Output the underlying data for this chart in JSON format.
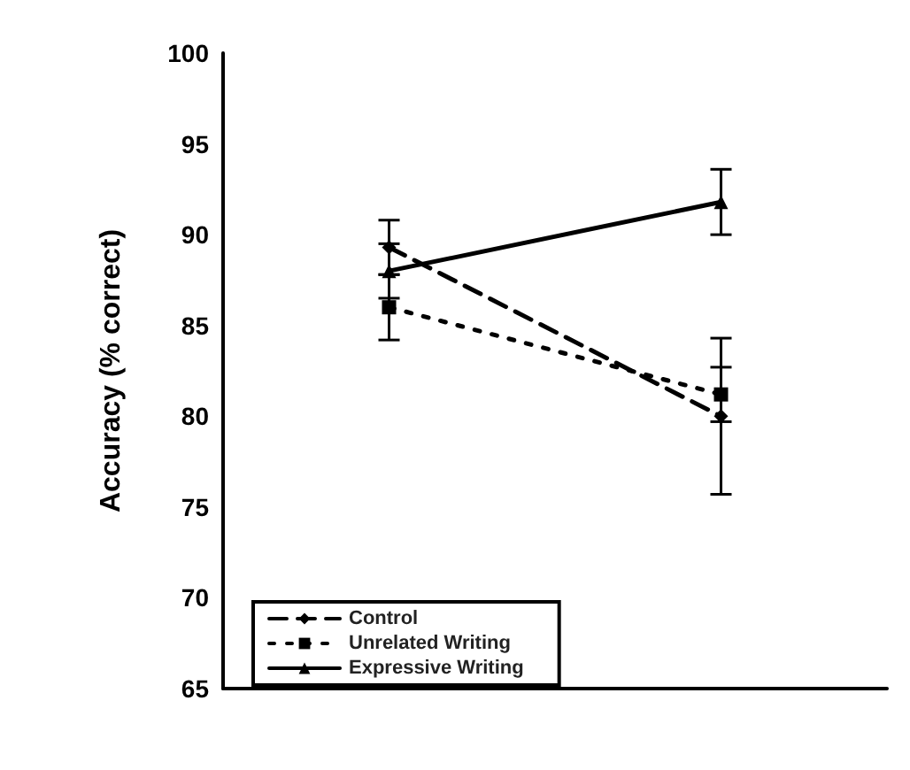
{
  "chart_data": {
    "type": "line",
    "ylabel": "Accuracy (% correct)",
    "categories": [
      null,
      null
    ],
    "ylim": [
      65,
      100
    ],
    "yticks": [
      65,
      70,
      75,
      80,
      85,
      90,
      95,
      100
    ],
    "grid": false,
    "legend": "bottom left",
    "series": [
      {
        "name": "Control",
        "color": "#000000",
        "values": [
          89.3,
          80.0
        ],
        "errors": [
          1.5,
          4.3
        ],
        "marker": "diamond",
        "line_style": "dashed"
      },
      {
        "name": "Unrelated Writing",
        "color": "#000000",
        "values": [
          86.0,
          81.2
        ],
        "errors": [
          1.8,
          1.5
        ],
        "marker": "square",
        "line_style": "dotted"
      },
      {
        "name": "Expressive Writing",
        "color": "#000000",
        "values": [
          88.0,
          91.8
        ],
        "errors": [
          1.5,
          1.8
        ],
        "marker": "triangle",
        "line_style": "solid"
      }
    ]
  }
}
